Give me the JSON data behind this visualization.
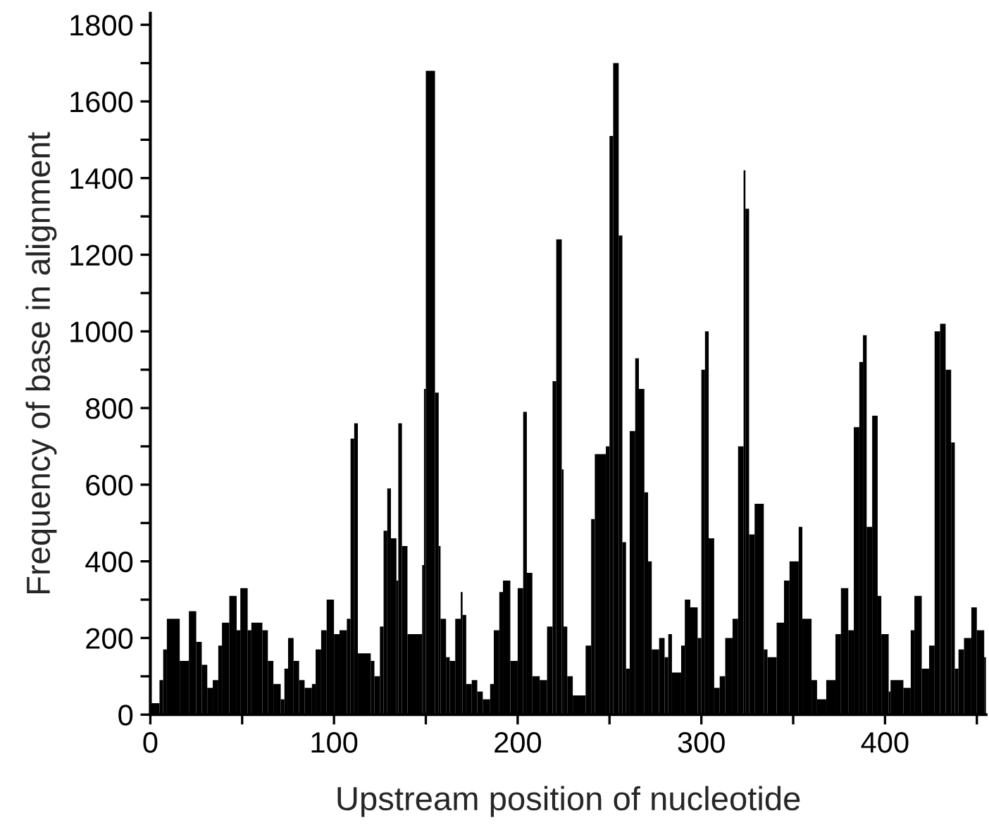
{
  "chart_data": {
    "type": "histogram",
    "xlabel": "Upstream position of nucleotide",
    "ylabel": "Frequency of base in alignment",
    "bins": [
      0,
      5,
      7,
      9,
      16,
      21,
      25,
      28,
      31,
      34,
      37,
      39,
      43,
      47,
      49,
      53,
      55,
      61,
      64,
      67,
      71,
      73,
      75,
      78,
      81,
      84,
      88,
      90,
      93,
      96,
      100,
      103,
      107,
      109,
      111,
      113,
      120,
      122,
      125,
      127,
      129,
      131,
      134,
      135,
      137,
      140,
      148,
      149,
      150,
      155,
      157,
      158,
      161,
      163,
      166,
      169,
      170,
      172,
      175,
      178,
      181,
      185,
      187,
      190,
      192,
      196,
      200,
      203,
      205,
      208,
      212,
      216,
      219,
      221,
      224,
      225,
      227,
      230,
      237,
      240,
      242,
      248,
      250,
      252,
      255,
      257,
      259,
      261,
      264,
      266,
      269,
      271,
      273,
      277,
      280,
      282,
      284,
      289,
      291,
      294,
      298,
      300,
      302,
      304,
      307,
      310,
      313,
      317,
      320,
      323,
      324,
      326,
      329,
      334,
      336,
      341,
      345,
      348,
      353,
      355,
      360,
      363,
      368,
      373,
      376,
      380,
      383,
      386,
      388,
      390,
      393,
      396,
      398,
      402,
      403,
      410,
      414,
      416,
      420,
      424,
      427,
      430,
      433,
      436,
      438,
      440,
      443,
      447,
      450,
      454,
      455
    ],
    "values": [
      30,
      90,
      170,
      250,
      140,
      270,
      190,
      130,
      70,
      90,
      180,
      240,
      310,
      220,
      330,
      220,
      240,
      220,
      140,
      80,
      40,
      120,
      200,
      140,
      90,
      70,
      80,
      170,
      220,
      300,
      210,
      220,
      250,
      720,
      760,
      160,
      140,
      100,
      230,
      480,
      590,
      460,
      350,
      760,
      440,
      210,
      390,
      850,
      1680,
      840,
      440,
      250,
      150,
      140,
      250,
      320,
      260,
      80,
      90,
      60,
      40,
      80,
      220,
      320,
      350,
      140,
      330,
      790,
      370,
      100,
      90,
      230,
      870,
      1240,
      640,
      230,
      100,
      50,
      180,
      510,
      680,
      700,
      1510,
      1700,
      1250,
      450,
      120,
      740,
      930,
      850,
      580,
      400,
      170,
      200,
      150,
      210,
      110,
      180,
      300,
      280,
      200,
      900,
      1000,
      460,
      70,
      100,
      200,
      250,
      700,
      1420,
      1320,
      470,
      550,
      170,
      150,
      240,
      350,
      400,
      490,
      250,
      90,
      40,
      90,
      210,
      330,
      220,
      750,
      920,
      990,
      490,
      780,
      310,
      210,
      60,
      90,
      70,
      220,
      310,
      120,
      180,
      1000,
      1020,
      900,
      710,
      120,
      170,
      200,
      280,
      220,
      150
    ],
    "color": "#000000",
    "xlim": [
      0,
      455
    ],
    "xticks": [
      0,
      {
        "value": 50,
        "label": null
      },
      100,
      {
        "value": 150,
        "label": null
      },
      200,
      {
        "value": 250,
        "label": null
      },
      300,
      {
        "value": 350,
        "label": null
      },
      400,
      {
        "value": 450,
        "label": null
      }
    ],
    "ylim": [
      0,
      1830
    ],
    "yticks": [
      0,
      {
        "value": 100,
        "label": null
      },
      200,
      {
        "value": 300,
        "label": null
      },
      400,
      {
        "value": 500,
        "label": null
      },
      600,
      {
        "value": 700,
        "label": null
      },
      800,
      {
        "value": 900,
        "label": null
      },
      1000,
      {
        "value": 1100,
        "label": null
      },
      1200,
      {
        "value": 1300,
        "label": null
      },
      1400,
      {
        "value": 1500,
        "label": null
      },
      1600,
      {
        "value": 1700,
        "label": null
      },
      1800
    ],
    "grid": false,
    "legend": false
  }
}
